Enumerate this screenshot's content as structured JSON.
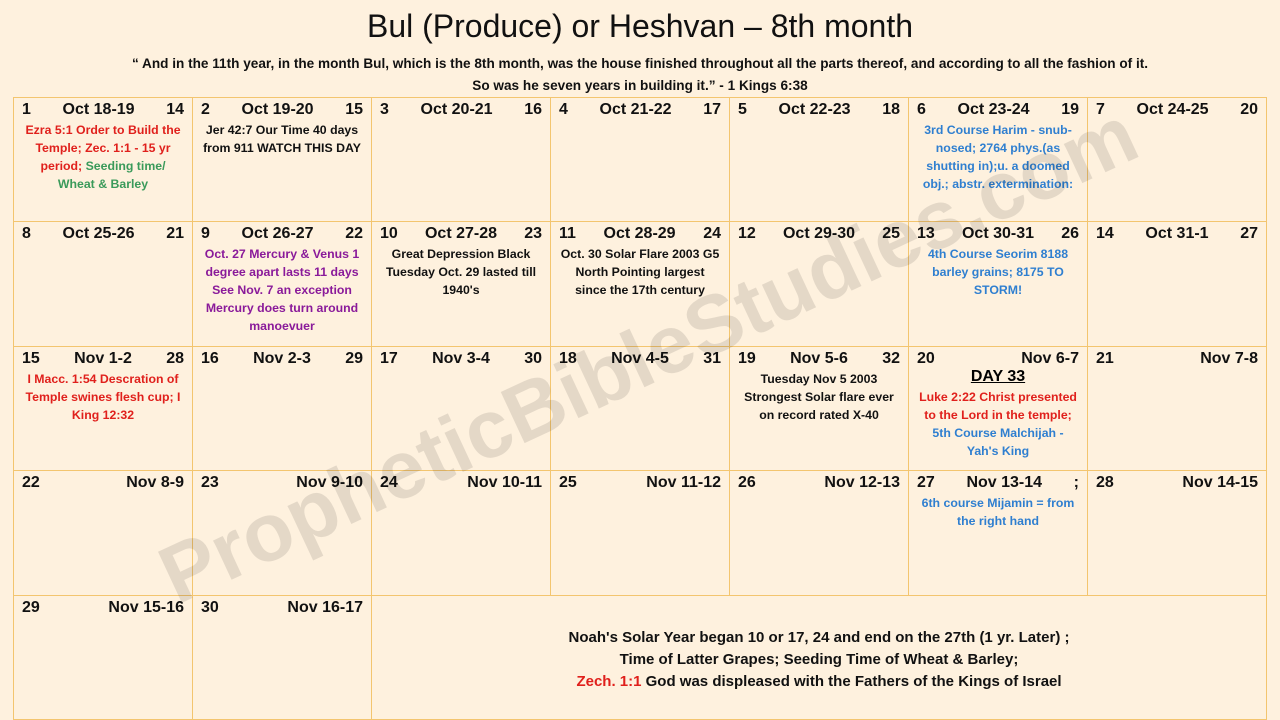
{
  "header": {
    "title": "Bul (Produce) or Heshvan – 8th month",
    "quote": [
      "“ And in the 11th  year, in the month Bul, which is the 8th  month, was the house finished throughout all the parts thereof, and according to all the fashion of it.",
      "So was he seven years in building it.” - 1 Kings 6:38"
    ]
  },
  "watermark": "PropheticBibleStudies.com",
  "calendar": {
    "cells": [
      {
        "day": "1",
        "date": "Oct 18-19",
        "extra": "14",
        "notes": [
          [
            {
              "text": "Ezra 5:1 Order to Build the Temple; Zec. 1:1 - 15 yr period; ",
              "color": "#e0201c"
            },
            {
              "text": "Seeding time/ Wheat & Barley",
              "color": "#3a9a5a"
            }
          ]
        ]
      },
      {
        "day": "2",
        "date": "Oct 19-20",
        "extra": "15",
        "notes": [
          [
            {
              "text": "Jer 42:7  Our Time 40 days from 911     WATCH THIS DAY",
              "color": "#111111"
            }
          ]
        ]
      },
      {
        "day": "3",
        "date": "Oct 20-21",
        "extra": "16",
        "notes": []
      },
      {
        "day": "4",
        "date": "Oct 21-22",
        "extra": "17",
        "notes": []
      },
      {
        "day": "5",
        "date": "Oct  22-23",
        "extra": "18",
        "notes": []
      },
      {
        "day": "6",
        "date": "Oct  23-24",
        "extra": "19",
        "notes": [
          [
            {
              "text": "3rd Course Harim - snub-nosed; 2764 phys.(as shutting in);u. a doomed obj.; abstr. extermination:",
              "color": "#2f7fd0"
            }
          ]
        ]
      },
      {
        "day": "7",
        "date": "Oct 24-25",
        "extra": "20",
        "notes": []
      },
      {
        "day": "8",
        "date": "Oct 25-26",
        "extra": "21",
        "notes": []
      },
      {
        "day": "9",
        "date": "Oct 26-27",
        "extra": "22",
        "notes": [
          [
            {
              "text": "Oct. 27 Mercury & Venus 1 degree apart lasts 11 days See Nov. 7 an exception Mercury does turn around manoevuer",
              "color": "#8a1a9a"
            }
          ]
        ]
      },
      {
        "day": "10",
        "date": "Oct 27-28",
        "extra": "23",
        "notes": [
          [
            {
              "text": "Great Depression Black Tuesday Oct. 29 lasted till 1940's",
              "color": "#111111"
            }
          ]
        ]
      },
      {
        "day": "11",
        "date": "Oct 28-29",
        "extra": "24",
        "notes": [
          [
            {
              "text": "Oct. 30 Solar Flare 2003 G5 North Pointing largest since the 17th century",
              "color": "#111111"
            }
          ]
        ]
      },
      {
        "day": "12",
        "date": "Oct 29-30",
        "extra": "25",
        "notes": []
      },
      {
        "day": "13",
        "date": "Oct 30-31",
        "extra": "26",
        "notes": [
          [
            {
              "text": "4th Course Seorim 8188 barley grains; 8175 TO STORM!",
              "color": "#2f7fd0"
            }
          ]
        ]
      },
      {
        "day": "14",
        "date": "Oct 31-1",
        "extra": "27",
        "notes": []
      },
      {
        "day": "15",
        "date": "Nov 1-2",
        "extra": "28",
        "notes": [
          [
            {
              "text": "I Macc. 1:54 Descration of Temple swines flesh cup; I King 12:32",
              "color": "#e0201c"
            }
          ]
        ]
      },
      {
        "day": "16",
        "date": "Nov 2-3",
        "extra": "29",
        "notes": []
      },
      {
        "day": "17",
        "date": "Nov 3-4",
        "extra": "30",
        "notes": []
      },
      {
        "day": "18",
        "date": "Nov 4-5",
        "extra": "31",
        "notes": []
      },
      {
        "day": "19",
        "date": "Nov 5-6",
        "extra": "32",
        "notes": [
          [
            {
              "text": "Tuesday Nov 5 2003 Strongest Solar flare ever on record rated X-40",
              "color": "#111111"
            }
          ]
        ]
      },
      {
        "day": "20",
        "date": "Nov 6-7",
        "subtitle": "DAY 33",
        "notes": [
          [
            {
              "text": "Luke 2:22 Christ presented to the Lord in the temple;",
              "color": "#e0201c"
            }
          ],
          [
            {
              "text": "5th Course Malchijah - Yah's King",
              "color": "#2f7fd0"
            }
          ]
        ]
      },
      {
        "day": "21",
        "date": "Nov 7-8",
        "notes": []
      },
      {
        "day": "22",
        "date": "Nov 8-9",
        "notes": []
      },
      {
        "day": "23",
        "date": "Nov 9-10",
        "notes": []
      },
      {
        "day": "24",
        "date": "Nov 10-11",
        "notes": []
      },
      {
        "day": "25",
        "date": "Nov 11-12",
        "notes": []
      },
      {
        "day": "26",
        "date": "Nov 12-13",
        "notes": []
      },
      {
        "day": "27",
        "date": "Nov 13-14",
        "extra": ";",
        "notes": [
          [
            {
              "text": "6th course Mijamin = from the right hand",
              "color": "#2f7fd0"
            }
          ]
        ]
      },
      {
        "day": "28",
        "date": "Nov 14-15",
        "notes": []
      },
      {
        "day": "29",
        "date": "Nov 15-16",
        "notes": []
      },
      {
        "day": "30",
        "date": "Nov 16-17",
        "notes": []
      }
    ],
    "summary": [
      [
        {
          "text": "Noah's Solar Year began 10 or 17, 24 and end on the 27th (1 yr. Later) ;",
          "color": "#111111"
        }
      ],
      [
        {
          "text": "Time of Latter Grapes; Seeding Time of Wheat & Barley;",
          "color": "#111111"
        }
      ],
      [
        {
          "text": "Zech. 1:1",
          "color": "#e0201c"
        },
        {
          "text": " God was displeased with the Fathers of the Kings of Israel",
          "color": "#111111"
        }
      ]
    ]
  }
}
